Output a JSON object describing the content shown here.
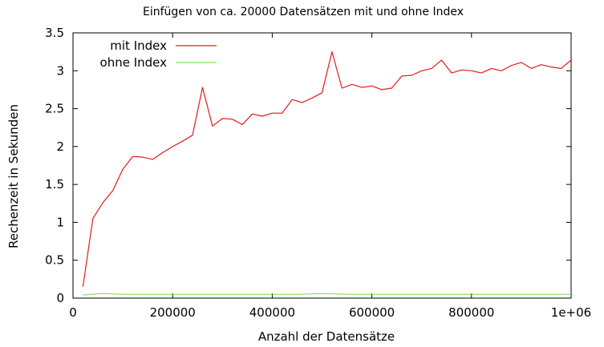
{
  "chart_data": {
    "type": "line",
    "title": "Einfügen von ca. 20000 Datensätzen mit und ohne Index",
    "xlabel": "Anzahl der Datensätze",
    "ylabel": "Rechenzeit in Sekunden",
    "xlim": [
      0,
      1000000
    ],
    "ylim": [
      0,
      3.5
    ],
    "x_ticks": [
      0,
      200000,
      400000,
      600000,
      800000,
      1000000
    ],
    "x_tick_labels": [
      "0",
      "200000",
      "400000",
      "600000",
      "800000",
      "1e+06"
    ],
    "y_ticks": [
      0,
      0.5,
      1,
      1.5,
      2,
      2.5,
      3,
      3.5
    ],
    "y_tick_labels": [
      "0",
      "0.5",
      "1",
      "1.5",
      "2",
      "2.5",
      "3",
      "3.5"
    ],
    "grid": false,
    "legend_position": "top-left",
    "series": [
      {
        "name": "mit Index",
        "color": "#e41a1c",
        "points": [
          [
            20000,
            0.15
          ],
          [
            40000,
            1.05
          ],
          [
            60000,
            1.26
          ],
          [
            80000,
            1.42
          ],
          [
            100000,
            1.7
          ],
          [
            120000,
            1.87
          ],
          [
            140000,
            1.86
          ],
          [
            160000,
            1.83
          ],
          [
            180000,
            1.92
          ],
          [
            200000,
            2.0
          ],
          [
            220000,
            2.07
          ],
          [
            240000,
            2.15
          ],
          [
            260000,
            2.78
          ],
          [
            280000,
            2.27
          ],
          [
            300000,
            2.37
          ],
          [
            320000,
            2.36
          ],
          [
            340000,
            2.29
          ],
          [
            360000,
            2.43
          ],
          [
            380000,
            2.4
          ],
          [
            400000,
            2.44
          ],
          [
            420000,
            2.44
          ],
          [
            440000,
            2.62
          ],
          [
            460000,
            2.58
          ],
          [
            480000,
            2.64
          ],
          [
            500000,
            2.71
          ],
          [
            520000,
            3.25
          ],
          [
            540000,
            2.77
          ],
          [
            560000,
            2.82
          ],
          [
            580000,
            2.78
          ],
          [
            600000,
            2.8
          ],
          [
            620000,
            2.75
          ],
          [
            640000,
            2.77
          ],
          [
            660000,
            2.93
          ],
          [
            680000,
            2.94
          ],
          [
            700000,
            3.0
          ],
          [
            720000,
            3.03
          ],
          [
            740000,
            3.14
          ],
          [
            760000,
            2.97
          ],
          [
            780000,
            3.01
          ],
          [
            800000,
            3.0
          ],
          [
            820000,
            2.97
          ],
          [
            840000,
            3.03
          ],
          [
            860000,
            3.0
          ],
          [
            880000,
            3.07
          ],
          [
            900000,
            3.11
          ],
          [
            920000,
            3.03
          ],
          [
            940000,
            3.08
          ],
          [
            960000,
            3.05
          ],
          [
            980000,
            3.03
          ],
          [
            1000000,
            3.14
          ]
        ]
      },
      {
        "name": "ohne Index",
        "color": "#7fe35a",
        "points": [
          [
            20000,
            0.04
          ],
          [
            60000,
            0.06
          ],
          [
            100000,
            0.05
          ],
          [
            150000,
            0.05
          ],
          [
            200000,
            0.05
          ],
          [
            250000,
            0.05
          ],
          [
            300000,
            0.05
          ],
          [
            350000,
            0.05
          ],
          [
            400000,
            0.05
          ],
          [
            450000,
            0.05
          ],
          [
            500000,
            0.06
          ],
          [
            550000,
            0.05
          ],
          [
            600000,
            0.05
          ],
          [
            650000,
            0.05
          ],
          [
            700000,
            0.05
          ],
          [
            750000,
            0.05
          ],
          [
            800000,
            0.05
          ],
          [
            850000,
            0.05
          ],
          [
            900000,
            0.05
          ],
          [
            950000,
            0.05
          ],
          [
            1000000,
            0.05
          ]
        ]
      }
    ]
  }
}
